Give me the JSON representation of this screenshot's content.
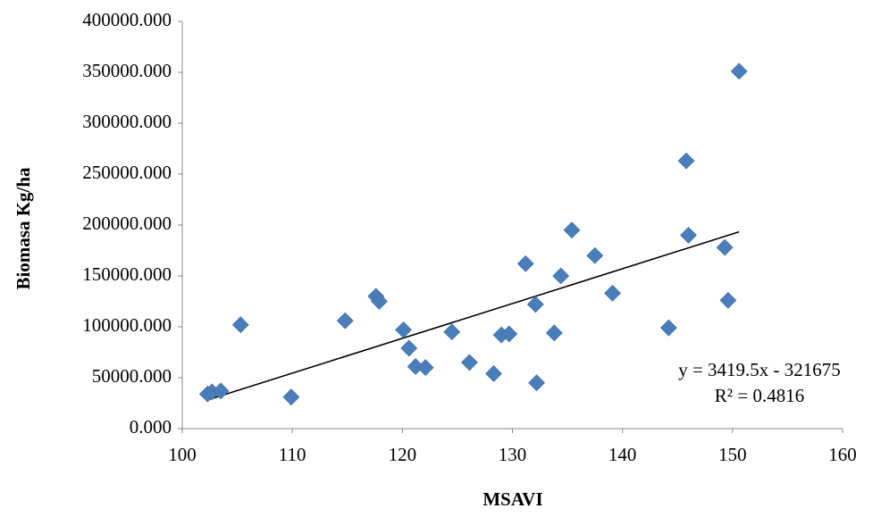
{
  "chart_data": {
    "type": "scatter",
    "title": "",
    "xlabel": "MSAVI",
    "ylabel": "Biomasa Kg/ha",
    "xlim": [
      100,
      160
    ],
    "ylim": [
      0,
      400000
    ],
    "x_ticks": [
      100,
      110,
      120,
      130,
      140,
      150,
      160
    ],
    "x_tick_labels": [
      "100",
      "110",
      "120",
      "130",
      "140",
      "150",
      "160"
    ],
    "y_ticks": [
      0,
      50000,
      100000,
      150000,
      200000,
      250000,
      300000,
      350000,
      400000
    ],
    "y_tick_labels": [
      "0.000",
      "50000.000",
      "100000.000",
      "150000.000",
      "200000.000",
      "250000.000",
      "300000.000",
      "350000.000",
      "400000.000"
    ],
    "grid": false,
    "marker": "diamond",
    "marker_color": "#4A7EBB",
    "series": [
      {
        "points": [
          [
            102.3,
            34000
          ],
          [
            102.7,
            36000
          ],
          [
            103.5,
            37000
          ],
          [
            105.3,
            102000
          ],
          [
            109.9,
            31000
          ],
          [
            114.8,
            106000
          ],
          [
            117.6,
            130000
          ],
          [
            117.9,
            125000
          ],
          [
            120.1,
            97000
          ],
          [
            120.6,
            79000
          ],
          [
            121.2,
            61000
          ],
          [
            122.1,
            60000
          ],
          [
            124.5,
            95000
          ],
          [
            126.1,
            65000
          ],
          [
            128.3,
            54000
          ],
          [
            129.0,
            92000
          ],
          [
            129.7,
            93000
          ],
          [
            131.2,
            162000
          ],
          [
            132.1,
            122000
          ],
          [
            132.2,
            45000
          ],
          [
            133.8,
            94000
          ],
          [
            134.4,
            150000
          ],
          [
            135.4,
            195000
          ],
          [
            137.5,
            170000
          ],
          [
            139.1,
            133000
          ],
          [
            144.2,
            99000
          ],
          [
            145.8,
            263000
          ],
          [
            146.0,
            190000
          ],
          [
            149.3,
            178000
          ],
          [
            149.6,
            126000
          ],
          [
            150.6,
            351000
          ]
        ]
      }
    ],
    "trendline": {
      "type": "linear",
      "slope": 3419.5,
      "intercept": -321675,
      "x_range": [
        102.3,
        150.6
      ],
      "equation_label": "y = 3419.5x - 321675",
      "r2_label": "R² = 0.4816",
      "color": "#000000"
    }
  }
}
